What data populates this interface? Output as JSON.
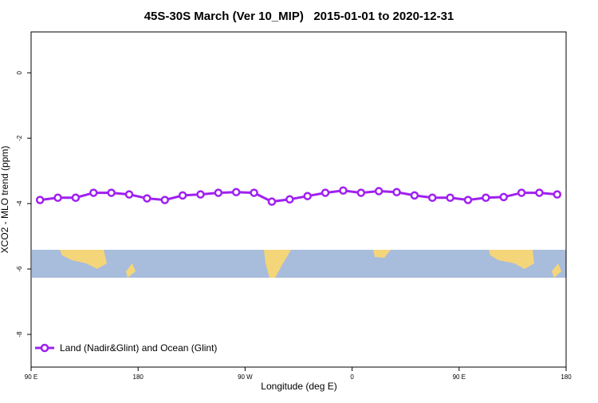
{
  "chart_data": {
    "type": "line",
    "title": "45S-30S March (Ver 10_MIP)   2015-01-01 to 2020-12-31",
    "xlabel": "Longitude (deg E)",
    "ylabel": "XCO2 - MLO trend (ppm)",
    "x": [
      97.5,
      112.5,
      127.5,
      142.5,
      157.5,
      172.5,
      187.5,
      202.5,
      217.5,
      232.5,
      247.5,
      262.5,
      277.5,
      292.5,
      307.5,
      322.5,
      337.5,
      352.5,
      367.5,
      382.5,
      397.5,
      412.5,
      427.5,
      442.5,
      457.5,
      472.5,
      487.5,
      502.5,
      517.5,
      532.5
    ],
    "series": [
      {
        "name": "Land (Nadir&Glint) and Ocean (Glint)",
        "color": "#a020f0",
        "values": [
          -3.89,
          -3.82,
          -3.82,
          -3.67,
          -3.67,
          -3.72,
          -3.84,
          -3.89,
          -3.75,
          -3.72,
          -3.67,
          -3.65,
          -3.67,
          -3.94,
          -3.87,
          -3.77,
          -3.67,
          -3.6,
          -3.67,
          -3.62,
          -3.65,
          -3.75,
          -3.82,
          -3.82,
          -3.89,
          -3.82,
          -3.8,
          -3.67,
          -3.67,
          -3.72
        ]
      }
    ],
    "xlim": [
      90,
      540
    ],
    "xticks": [
      {
        "value": 90,
        "label": "90 E"
      },
      {
        "value": 180,
        "label": "180"
      },
      {
        "value": 270,
        "label": "90 W"
      },
      {
        "value": 360,
        "label": "0"
      },
      {
        "value": 450,
        "label": "90 E"
      },
      {
        "value": 540,
        "label": "180"
      }
    ],
    "ylim": [
      -9,
      1.25
    ],
    "yticks": [
      0,
      -2,
      -4,
      -6,
      -8
    ],
    "legend": "bottom-left"
  }
}
